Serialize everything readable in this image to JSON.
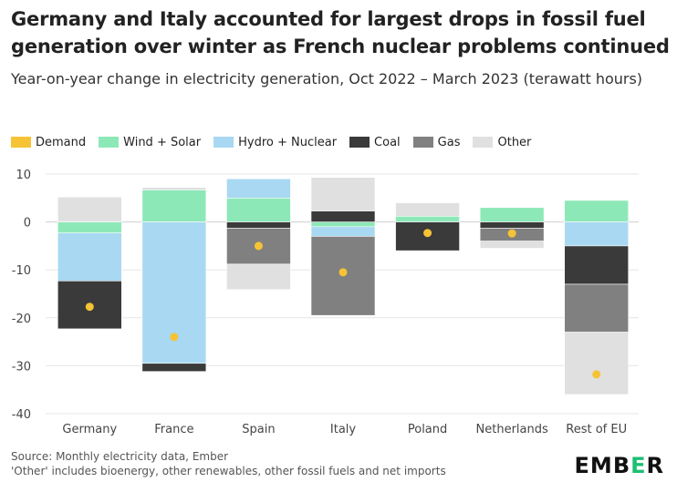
{
  "header": {
    "title": "Germany and Italy accounted for largest drops in fossil fuel generation over winter as French nuclear problems continued",
    "subtitle": "Year-on-year change in electricity generation, Oct 2022 – March 2023 (terawatt hours)"
  },
  "footer": {
    "source": "Source: Monthly electricity data, Ember",
    "note": "'Other' includes bioenergy, other renewables, other fossil fuels and net imports"
  },
  "logo": {
    "text": "EMBER"
  },
  "colors": {
    "Demand": "#f5c335",
    "Wind + Solar": "#8de8b8",
    "Hydro + Nuclear": "#a9d8f2",
    "Coal": "#3a3a3a",
    "Gas": "#808080",
    "Other": "#e0e0e0"
  },
  "chart_data": {
    "type": "bar",
    "stacked": true,
    "categories": [
      "Germany",
      "France",
      "Spain",
      "Italy",
      "Poland",
      "Netherlands",
      "Rest of EU"
    ],
    "ylim": [
      -40,
      10
    ],
    "yticks": [
      10,
      0,
      -10,
      -20,
      -30,
      -40
    ],
    "grid": true,
    "legend": "top-left",
    "series": [
      {
        "name": "Wind + Solar",
        "values": [
          -2.3,
          6.7,
          5.0,
          -1.0,
          1.2,
          3.0,
          4.5
        ]
      },
      {
        "name": "Hydro + Nuclear",
        "values": [
          -10.0,
          -29.5,
          4.0,
          -2.0,
          0,
          0,
          -5.0
        ]
      },
      {
        "name": "Coal",
        "values": [
          -10.0,
          -1.7,
          -1.3,
          2.3,
          -6.0,
          -1.3,
          -8.0
        ]
      },
      {
        "name": "Gas",
        "values": [
          0,
          0,
          -7.5,
          -16.5,
          0,
          -2.7,
          -10.0
        ]
      },
      {
        "name": "Other",
        "values": [
          5.2,
          0.5,
          -5.3,
          7.0,
          2.8,
          -1.5,
          -13.0
        ]
      }
    ],
    "demand": {
      "name": "Demand",
      "values": [
        -17.7,
        -24.0,
        -5.0,
        -10.5,
        -2.3,
        -2.4,
        -31.8
      ]
    }
  }
}
